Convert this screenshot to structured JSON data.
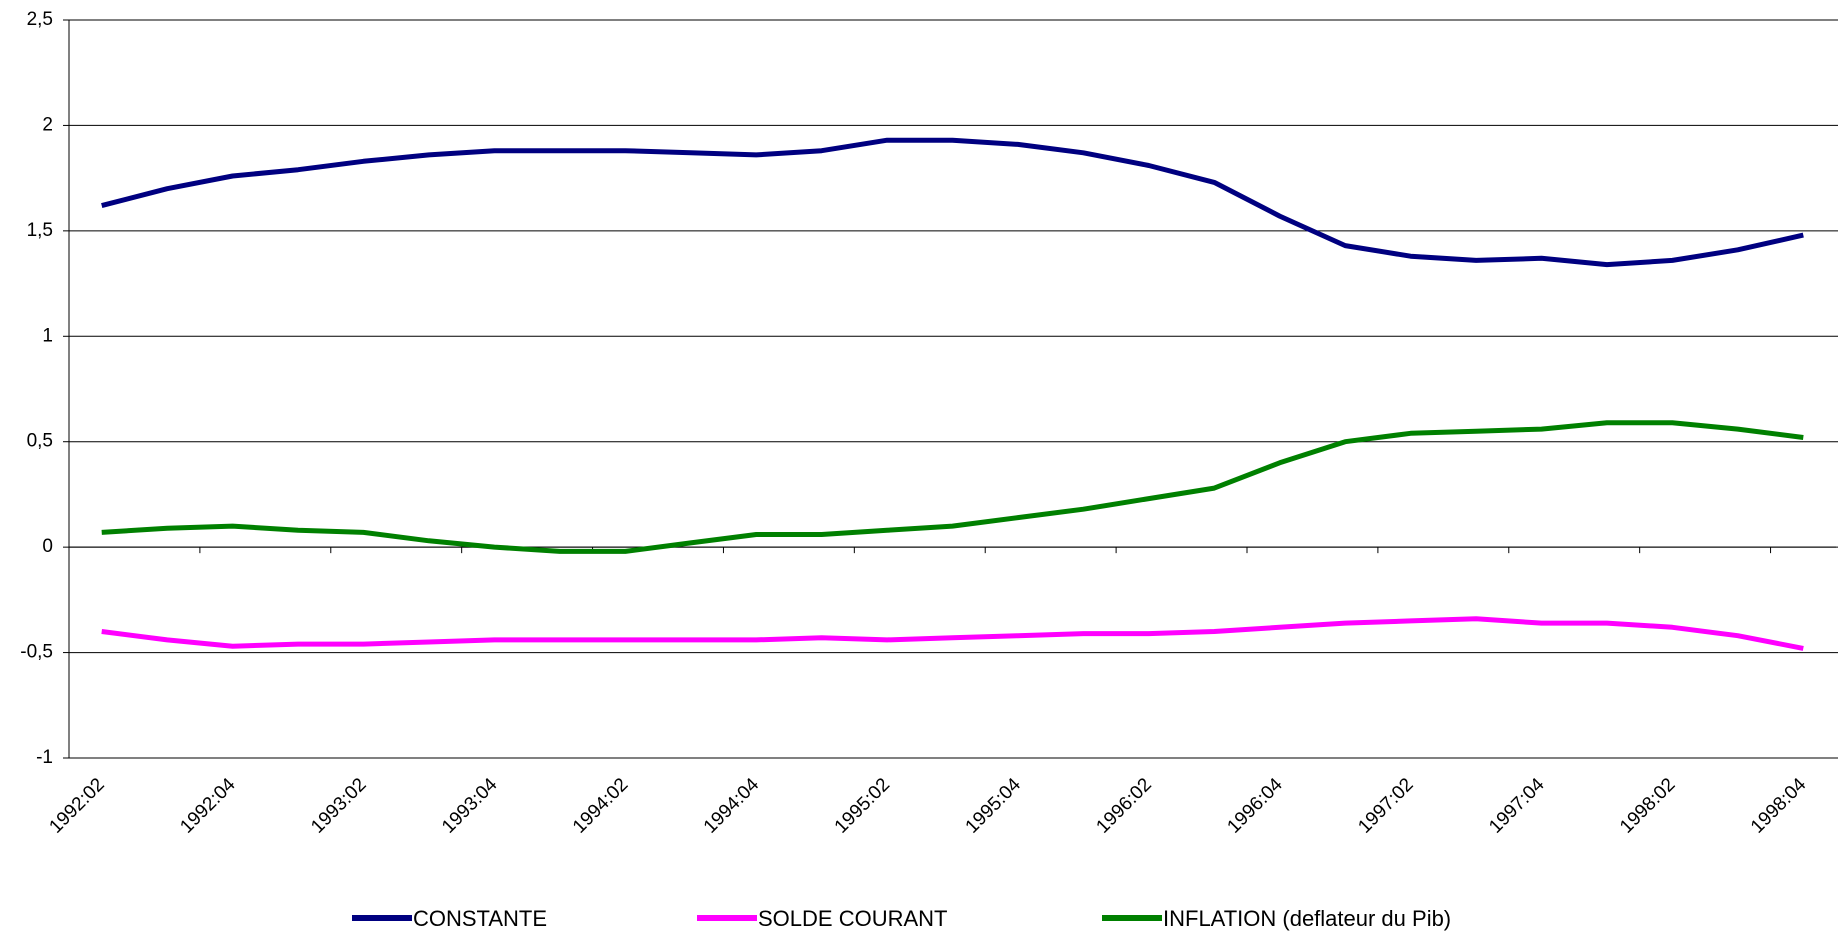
{
  "chart_data": {
    "type": "line",
    "categories": [
      "1992:02",
      null,
      "1992:04",
      null,
      "1993:02",
      null,
      "1993:04",
      null,
      "1994:02",
      null,
      "1994:04",
      null,
      "1995:02",
      null,
      "1995:04",
      null,
      "1996:02",
      null,
      "1996:04",
      null,
      "1997:02",
      null,
      "1997:04",
      null,
      "1998:02",
      null,
      "1998:04"
    ],
    "series": [
      {
        "name": "CONSTANTE",
        "color": "#000080",
        "values": [
          1.62,
          1.7,
          1.76,
          1.79,
          1.83,
          1.86,
          1.88,
          1.88,
          1.88,
          1.87,
          1.86,
          1.88,
          1.93,
          1.93,
          1.91,
          1.87,
          1.81,
          1.73,
          1.57,
          1.43,
          1.38,
          1.36,
          1.37,
          1.34,
          1.36,
          1.41,
          1.48
        ]
      },
      {
        "name": "SOLDE COURANT",
        "color": "#ff00ff",
        "values": [
          -0.4,
          -0.44,
          -0.47,
          -0.46,
          -0.46,
          -0.45,
          -0.44,
          -0.44,
          -0.44,
          -0.44,
          -0.44,
          -0.43,
          -0.44,
          -0.43,
          -0.42,
          -0.41,
          -0.41,
          -0.4,
          -0.38,
          -0.36,
          -0.35,
          -0.34,
          -0.36,
          -0.36,
          -0.38,
          -0.42,
          -0.48
        ]
      },
      {
        "name": "INFLATION (deflateur du Pib)",
        "color": "#008000",
        "values": [
          0.07,
          0.09,
          0.1,
          0.08,
          0.07,
          0.03,
          0.0,
          -0.02,
          -0.02,
          0.02,
          0.06,
          0.06,
          0.08,
          0.1,
          0.14,
          0.18,
          0.23,
          0.28,
          0.4,
          0.5,
          0.54,
          0.55,
          0.56,
          0.59,
          0.59,
          0.56,
          0.52
        ]
      }
    ],
    "ylim": [
      -1,
      2.5
    ],
    "yticks": [
      -1,
      {
        "value": -0.5,
        "label": "-0,5"
      },
      0,
      {
        "value": 0.5,
        "label": "0,5"
      },
      1,
      {
        "value": 1.5,
        "label": "1,5"
      },
      2,
      {
        "value": 2.5,
        "label": "2,5"
      }
    ],
    "grid": true,
    "legend": "bottom"
  }
}
